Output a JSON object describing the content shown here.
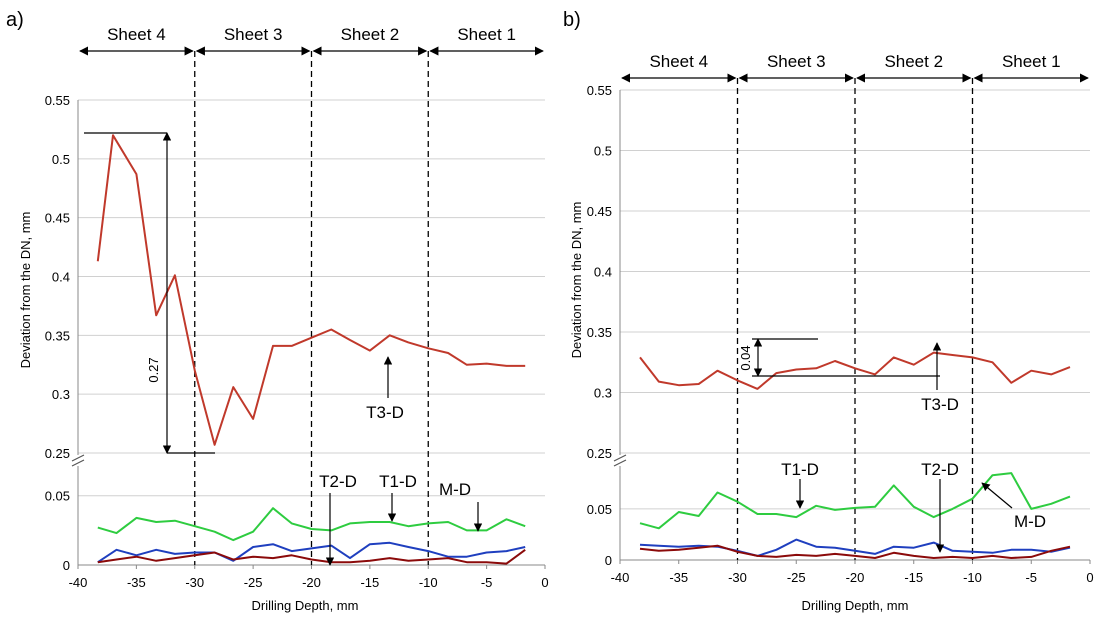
{
  "chart_data": [
    {
      "panel_label": "a)",
      "type": "line",
      "xlabel": "Drilling Depth, mm",
      "ylabel": "Deviation from the DN, mm",
      "xlim": [
        -40,
        0
      ],
      "x_ticks": [
        -40,
        -35,
        -30,
        -25,
        -20,
        -15,
        -10,
        -5,
        0
      ],
      "ylim_upper": [
        0.25,
        0.55
      ],
      "y_ticks_upper": [
        0.25,
        0.3,
        0.35,
        0.4,
        0.45,
        0.5,
        0.55
      ],
      "ylim_lower": [
        0,
        0.07
      ],
      "y_ticks_lower": [
        0,
        0.05
      ],
      "broken_y_axis": true,
      "grid": "horizontal",
      "sheets": [
        {
          "label": "Sheet 4",
          "range": [
            -40,
            -30
          ]
        },
        {
          "label": "Sheet 3",
          "range": [
            -30,
            -20
          ]
        },
        {
          "label": "Sheet 2",
          "range": [
            -20,
            -10
          ]
        },
        {
          "label": "Sheet 1",
          "range": [
            -10,
            0
          ]
        }
      ],
      "sheet_boundaries": [
        -30,
        -20,
        -10
      ],
      "series": [
        {
          "name": "T3-D",
          "color": "#c0392b",
          "axis": "upper",
          "x": [
            -38.3,
            -37,
            -35,
            -33.3,
            -31.7,
            -30,
            -28.3,
            -26.7,
            -25,
            -23.3,
            -21.7,
            -20,
            -18.3,
            -16.7,
            -15,
            -13.3,
            -11.7,
            -10,
            -8.3,
            -6.7,
            -5,
            -3.3,
            -1.7
          ],
          "y": [
            0.413,
            0.52,
            0.487,
            0.367,
            0.401,
            0.32,
            0.257,
            0.306,
            0.279,
            0.341,
            0.341,
            0.348,
            0.355,
            0.346,
            0.337,
            0.35,
            0.344,
            0.339,
            0.335,
            0.325,
            0.326,
            0.324,
            0.324
          ]
        },
        {
          "name": "M-D",
          "color": "#2ecc40",
          "axis": "lower",
          "x": [
            -38.3,
            -36.7,
            -35,
            -33.3,
            -31.7,
            -30,
            -28.3,
            -26.7,
            -25,
            -23.3,
            -21.7,
            -20,
            -18.3,
            -16.7,
            -15,
            -13.3,
            -11.7,
            -10,
            -8.3,
            -6.7,
            -5,
            -3.3,
            -1.7
          ],
          "y": [
            0.027,
            0.023,
            0.034,
            0.031,
            0.032,
            0.028,
            0.024,
            0.018,
            0.024,
            0.041,
            0.03,
            0.026,
            0.025,
            0.03,
            0.031,
            0.031,
            0.028,
            0.03,
            0.031,
            0.025,
            0.025,
            0.033,
            0.028
          ]
        },
        {
          "name": "T1-D",
          "color": "#1f3fbf",
          "axis": "lower",
          "x": [
            -38.3,
            -36.7,
            -35,
            -33.3,
            -31.7,
            -30,
            -28.3,
            -26.7,
            -25,
            -23.3,
            -21.7,
            -20,
            -18.3,
            -16.7,
            -15,
            -13.3,
            -11.7,
            -10,
            -8.3,
            -6.7,
            -5,
            -3.3,
            -1.7
          ],
          "y": [
            0.002,
            0.011,
            0.007,
            0.011,
            0.008,
            0.009,
            0.009,
            0.003,
            0.013,
            0.015,
            0.01,
            0.012,
            0.014,
            0.005,
            0.015,
            0.016,
            0.013,
            0.01,
            0.006,
            0.006,
            0.009,
            0.01,
            0.013
          ]
        },
        {
          "name": "T2-D",
          "color": "#8b0a0a",
          "axis": "lower",
          "x": [
            -38.3,
            -36.7,
            -35,
            -33.3,
            -31.7,
            -30,
            -28.3,
            -26.7,
            -25,
            -23.3,
            -21.7,
            -20,
            -18.3,
            -16.7,
            -15,
            -13.3,
            -11.7,
            -10,
            -8.3,
            -6.7,
            -5,
            -3.3,
            -1.7
          ],
          "y": [
            0.002,
            0.004,
            0.006,
            0.003,
            0.005,
            0.007,
            0.009,
            0.004,
            0.006,
            0.005,
            0.007,
            0.004,
            0.002,
            0.002,
            0.003,
            0.005,
            0.003,
            0.004,
            0.005,
            0.002,
            0.002,
            0.001,
            0.011
          ]
        }
      ],
      "annotations": [
        {
          "text": "0.27",
          "type": "dimension",
          "x": -35.5,
          "y_from": 0.257,
          "y_to": 0.52
        },
        {
          "text": "T3-D",
          "arrow_to": {
            "x": -13.5,
            "y": 0.348
          },
          "axis": "upper"
        },
        {
          "text": "T2-D",
          "arrow_to": {
            "x": -18.5,
            "y": 0.0
          },
          "axis": "lower"
        },
        {
          "text": "T1-D",
          "arrow_to": {
            "x": -13,
            "y": 0.016
          },
          "axis": "lower"
        },
        {
          "text": "M-D",
          "arrow_to": {
            "x": -6,
            "y": 0.026
          },
          "axis": "lower"
        }
      ]
    },
    {
      "panel_label": "b)",
      "type": "line",
      "xlabel": "Drilling Depth, mm",
      "ylabel": "Deviation from the DN, mm",
      "xlim": [
        -40,
        0
      ],
      "x_ticks": [
        -40,
        -35,
        -30,
        -25,
        -20,
        -15,
        -10,
        -5,
        0
      ],
      "ylim_upper": [
        0.25,
        0.55
      ],
      "y_ticks_upper": [
        0.25,
        0.3,
        0.35,
        0.4,
        0.45,
        0.5,
        0.55
      ],
      "ylim_lower": [
        0,
        0.09
      ],
      "y_ticks_lower": [
        0,
        0.05
      ],
      "broken_y_axis": true,
      "grid": "horizontal",
      "sheets": [
        {
          "label": "Sheet 4",
          "range": [
            -40,
            -30
          ]
        },
        {
          "label": "Sheet 3",
          "range": [
            -30,
            -20
          ]
        },
        {
          "label": "Sheet 2",
          "range": [
            -20,
            -10
          ]
        },
        {
          "label": "Sheet 1",
          "range": [
            -10,
            0
          ]
        }
      ],
      "sheet_boundaries": [
        -30,
        -20,
        -10
      ],
      "series": [
        {
          "name": "T3-D",
          "color": "#c0392b",
          "axis": "upper",
          "x": [
            -38.3,
            -36.7,
            -35,
            -33.3,
            -31.7,
            -30,
            -28.3,
            -26.7,
            -25,
            -23.3,
            -21.7,
            -20,
            -18.3,
            -16.7,
            -15,
            -13.3,
            -11.7,
            -10,
            -8.3,
            -6.7,
            -5,
            -3.3,
            -1.7
          ],
          "y": [
            0.329,
            0.309,
            0.306,
            0.307,
            0.318,
            0.31,
            0.303,
            0.316,
            0.319,
            0.32,
            0.326,
            0.32,
            0.315,
            0.329,
            0.323,
            0.333,
            0.331,
            0.329,
            0.325,
            0.308,
            0.318,
            0.315,
            0.321
          ]
        },
        {
          "name": "M-D",
          "color": "#2ecc40",
          "axis": "lower",
          "x": [
            -38.3,
            -36.7,
            -35,
            -33.3,
            -31.7,
            -30,
            -28.3,
            -26.7,
            -25,
            -23.3,
            -21.7,
            -20,
            -18.3,
            -16.7,
            -15,
            -13.3,
            -11.7,
            -10,
            -8.3,
            -6.7,
            -5,
            -3.3,
            -1.7
          ],
          "y": [
            0.036,
            0.031,
            0.047,
            0.043,
            0.066,
            0.057,
            0.045,
            0.045,
            0.042,
            0.053,
            0.049,
            0.051,
            0.052,
            0.073,
            0.052,
            0.042,
            0.05,
            0.06,
            0.083,
            0.085,
            0.05,
            0.055,
            0.062
          ]
        },
        {
          "name": "T1-D",
          "color": "#1f3fbf",
          "axis": "lower",
          "x": [
            -38.3,
            -36.7,
            -35,
            -33.3,
            -31.7,
            -30,
            -28.3,
            -26.7,
            -25,
            -23.3,
            -21.7,
            -20,
            -18.3,
            -16.7,
            -15,
            -13.3,
            -11.7,
            -10,
            -8.3,
            -6.7,
            -5,
            -3.3,
            -1.7
          ],
          "y": [
            0.015,
            0.014,
            0.013,
            0.014,
            0.013,
            0.009,
            0.004,
            0.01,
            0.02,
            0.013,
            0.012,
            0.009,
            0.006,
            0.013,
            0.012,
            0.017,
            0.009,
            0.008,
            0.007,
            0.01,
            0.01,
            0.008,
            0.012
          ]
        },
        {
          "name": "T2-D",
          "color": "#8b0a0a",
          "axis": "lower",
          "x": [
            -38.3,
            -36.7,
            -35,
            -33.3,
            -31.7,
            -30,
            -28.3,
            -26.7,
            -25,
            -23.3,
            -21.7,
            -20,
            -18.3,
            -16.7,
            -15,
            -13.3,
            -11.7,
            -10,
            -8.3,
            -6.7,
            -5,
            -3.3,
            -1.7
          ],
          "y": [
            0.011,
            0.009,
            0.01,
            0.012,
            0.014,
            0.008,
            0.004,
            0.003,
            0.005,
            0.004,
            0.006,
            0.004,
            0.002,
            0.007,
            0.004,
            0.002,
            0.003,
            0.002,
            0.004,
            0.002,
            0.003,
            0.009,
            0.013
          ]
        }
      ],
      "annotations": [
        {
          "text": "0.04",
          "type": "dimension",
          "x": -28.5,
          "y_from": 0.301,
          "y_to": 0.335
        },
        {
          "text": "T3-D",
          "arrow_to": {
            "x": -13,
            "y": 0.333
          },
          "axis": "upper"
        },
        {
          "text": "T1-D",
          "arrow_to": {
            "x": -25,
            "y": 0.018
          },
          "axis": "lower"
        },
        {
          "text": "T2-D",
          "arrow_to": {
            "x": -13,
            "y": 0.002
          },
          "axis": "lower"
        },
        {
          "text": "M-D",
          "arrow_to": {
            "x": -9.5,
            "y": 0.072
          },
          "axis": "lower"
        }
      ]
    }
  ]
}
